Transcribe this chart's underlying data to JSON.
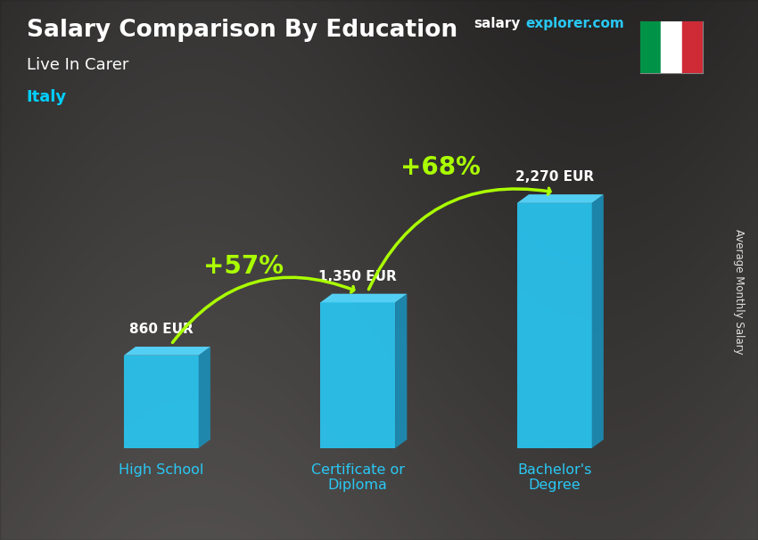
{
  "title": "Salary Comparison By Education",
  "subtitle": "Live In Carer",
  "country": "Italy",
  "categories": [
    "High School",
    "Certificate or\nDiploma",
    "Bachelor's\nDegree"
  ],
  "values": [
    860,
    1350,
    2270
  ],
  "value_labels": [
    "860 EUR",
    "1,350 EUR",
    "2,270 EUR"
  ],
  "bar_color_main": "#29c8f5",
  "bar_color_side": "#1a90bb",
  "bar_color_top": "#55d8ff",
  "pct_labels": [
    "+57%",
    "+68%"
  ],
  "pct_color": "#aaff00",
  "title_color": "#ffffff",
  "subtitle_color": "#ffffff",
  "country_color": "#00cfff",
  "ylabel": "Average Monthly Salary",
  "website_text": "salaryexplorer.com",
  "website_color": "#29c8f5",
  "website_prefix_color": "#ffffff",
  "bar_width": 0.38,
  "ylim": [
    0,
    2900
  ],
  "figsize": [
    8.5,
    6.06
  ],
  "dpi": 100,
  "flag_green": "#009246",
  "flag_white": "#ffffff",
  "flag_red": "#ce2b37",
  "bg_color": "#5a5a5a"
}
